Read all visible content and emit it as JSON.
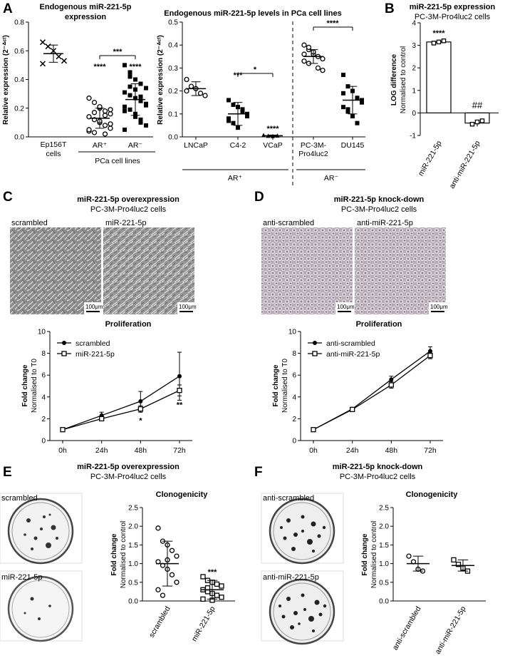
{
  "panels": {
    "A": {
      "letter": "A",
      "title1": "Endogenous miR-221-5p",
      "title2": "expression",
      "title_right": "Endogenous miR-221-5p levels in PCa cell lines",
      "group_left": "PCa cell lines",
      "group_arpos": "AR⁺",
      "group_arneg": "AR⁻"
    },
    "B": {
      "letter": "B",
      "title": "miR-221-5p expression",
      "subtitle": "PC-3M-Pro4luc2 cells"
    },
    "C": {
      "letter": "C",
      "title": "miR-221-5p overexpression",
      "subtitle": "PC-3M-Pro4luc2 cells",
      "img1": "scrambled",
      "img2": "miR-221-5p",
      "scale": "100μm",
      "chart_title": "Proliferation"
    },
    "D": {
      "letter": "D",
      "title": "miR-221-5p knock-down",
      "subtitle": "PC-3M-Pro4luc2 cells",
      "img1": "anti-scrambled",
      "img2": "anti-miR-221-5p",
      "scale": "100μm",
      "chart_title": "Proliferation"
    },
    "E": {
      "letter": "E",
      "title": "miR-221-5p overexpression",
      "subtitle": "PC-3M-Pro4luc2 cells",
      "img1": "scrambled",
      "img2": "miR-221-5p",
      "chart_title": "Clonogenicity"
    },
    "F": {
      "letter": "F",
      "title": "miR-221-5p knock-down",
      "subtitle": "PC-3M-Pro4luc2 cells",
      "img1": "anti-scrambled",
      "img2": "anti-miR-221-5p",
      "chart_title": "Clonogenicity"
    }
  },
  "colors": {
    "line": "#000000",
    "image_gray": "#8a8a8a",
    "image_purple": "#b8adb8"
  },
  "chart_data": [
    {
      "id": "A1",
      "type": "scatter",
      "ylabel": "Relative expression (2⁻ᐞᶜᵗ)",
      "ylim": [
        0,
        0.8
      ],
      "yticks": [
        "0.0",
        "0.2",
        "0.4",
        "0.6",
        "0.8"
      ],
      "categories": [
        "Ep156T cells",
        "AR⁺",
        "AR⁻"
      ],
      "means": [
        0.58,
        0.13,
        0.26
      ],
      "sd": [
        0.06,
        0.07,
        0.11
      ],
      "markers": [
        "x",
        "circle",
        "square"
      ],
      "points": [
        [
          0.66,
          0.63,
          0.6,
          0.56,
          0.53,
          0.51
        ],
        [
          0.27,
          0.24,
          0.2,
          0.18,
          0.16,
          0.14,
          0.12,
          0.1,
          0.08,
          0.06,
          0.04,
          0.03,
          0.21,
          0.15,
          0.09,
          0.05,
          0.17,
          0.11,
          0.02,
          0.19
        ],
        [
          0.5,
          0.45,
          0.4,
          0.37,
          0.34,
          0.31,
          0.29,
          0.27,
          0.25,
          0.23,
          0.21,
          0.19,
          0.16,
          0.12,
          0.08,
          0.05,
          0.42,
          0.33,
          0.28,
          0.22,
          0.18,
          0.35,
          0.14,
          0.1
        ]
      ],
      "annotations": [
        "****",
        "****",
        "***"
      ]
    },
    {
      "id": "A2",
      "type": "scatter",
      "ylabel": "Relative expression (2⁻ᐞᶜᵗ)",
      "ylim": [
        0,
        0.5
      ],
      "yticks": [
        "0.0",
        "0.1",
        "0.2",
        "0.3",
        "0.4",
        "0.5"
      ],
      "categories": [
        "LNCaP",
        "C4-2",
        "VCaP",
        "PC-3M-Pro4luc2",
        "DU145"
      ],
      "category_lines": [
        [
          "LNCaP"
        ],
        [
          "C4-2"
        ],
        [
          "VCaP"
        ],
        [
          "PC-3M-",
          "Pro4luc2"
        ],
        [
          "DU145"
        ]
      ],
      "means": [
        0.21,
        0.1,
        0.005,
        0.35,
        0.16
      ],
      "sd": [
        0.03,
        0.05,
        0.003,
        0.03,
        0.06
      ],
      "markers": [
        "circle",
        "square",
        "triangle",
        "circle",
        "square"
      ],
      "points": [
        [
          0.25,
          0.22,
          0.21,
          0.19,
          0.18,
          0.2
        ],
        [
          0.16,
          0.14,
          0.13,
          0.11,
          0.09,
          0.08,
          0.06,
          0.04,
          0.12,
          0.1,
          0.07
        ],
        [
          0.008,
          0.005,
          0.004,
          0.006
        ],
        [
          0.4,
          0.38,
          0.36,
          0.35,
          0.34,
          0.33,
          0.32,
          0.37,
          0.3,
          0.29,
          0.36,
          0.39
        ],
        [
          0.27,
          0.22,
          0.2,
          0.17,
          0.15,
          0.13,
          0.11,
          0.09,
          0.06,
          0.16,
          0.19,
          0.12
        ]
      ],
      "annotations": [
        "***",
        "****",
        "*",
        "****"
      ]
    },
    {
      "id": "B",
      "type": "bar",
      "ylabel": "LOG difference",
      "ylabel2": "Normalised to control",
      "ylim": [
        -1,
        4
      ],
      "yticks": [
        "-1",
        "0",
        "1",
        "2",
        "3",
        "4"
      ],
      "categories": [
        "miR-221-5p",
        "anti-miR-221-5p"
      ],
      "values": [
        3.15,
        -0.45
      ],
      "sd": [
        0.05,
        0.15
      ],
      "points": [
        [
          3.1,
          3.15,
          3.2
        ],
        [
          -0.5,
          -0.4,
          -0.35
        ]
      ],
      "annotations": [
        "****",
        "##"
      ]
    },
    {
      "id": "C",
      "type": "line",
      "ylabel": "Fold change",
      "ylabel2": "Normalised to T0",
      "ylim": [
        0,
        10
      ],
      "yticks": [
        "0",
        "2",
        "4",
        "6",
        "8",
        "10"
      ],
      "x": [
        "0h",
        "24h",
        "48h",
        "72h"
      ],
      "series": [
        {
          "name": "scrambled",
          "marker": "circle",
          "values": [
            1,
            2.3,
            3.6,
            5.9
          ],
          "sd": [
            0.05,
            0.3,
            0.9,
            2.2
          ]
        },
        {
          "name": "miR-221-5p",
          "marker": "square",
          "values": [
            1,
            2.0,
            2.9,
            4.6
          ],
          "sd": [
            0.05,
            0.2,
            0.3,
            0.5
          ]
        }
      ],
      "annotations": [
        "*",
        "**"
      ]
    },
    {
      "id": "D",
      "type": "line",
      "ylabel": "Fold change",
      "ylabel2": "Normalised to T0",
      "ylim": [
        0,
        10
      ],
      "yticks": [
        "0",
        "2",
        "4",
        "6",
        "8",
        "10"
      ],
      "x": [
        "0h",
        "24h",
        "48h",
        "72h"
      ],
      "series": [
        {
          "name": "anti-scrambled",
          "marker": "circle",
          "values": [
            1,
            2.9,
            5.6,
            8.2
          ],
          "sd": [
            0.05,
            0.1,
            0.3,
            0.4
          ]
        },
        {
          "name": "anti-miR-221-5p",
          "marker": "square",
          "values": [
            1,
            2.85,
            5.1,
            7.8
          ],
          "sd": [
            0.05,
            0.1,
            0.3,
            0.3
          ]
        }
      ]
    },
    {
      "id": "E",
      "type": "scatter",
      "ylabel": "Fold change",
      "ylabel2": "Normalised to control",
      "ylim": [
        0,
        2.5
      ],
      "yticks": [
        "0.0",
        "0.5",
        "1.0",
        "1.5",
        "2.0",
        "2.5"
      ],
      "categories": [
        "scrambled",
        "miR-221-5p"
      ],
      "means": [
        1.0,
        0.3
      ],
      "sd": [
        0.6,
        0.25
      ],
      "markers": [
        "circle",
        "square"
      ],
      "points": [
        [
          1.95,
          1.6,
          1.5,
          1.35,
          1.2,
          1.05,
          0.95,
          0.85,
          0.7,
          0.5,
          0.3,
          0.15,
          1.1
        ],
        [
          0.65,
          0.55,
          0.5,
          0.45,
          0.4,
          0.3,
          0.25,
          0.2,
          0.15,
          0.1,
          0.05,
          0.35,
          0.02
        ]
      ],
      "annotations": [
        "***"
      ]
    },
    {
      "id": "F",
      "type": "scatter",
      "ylabel": "Fold change",
      "ylabel2": "Normalised to control",
      "ylim": [
        0,
        2.5
      ],
      "yticks": [
        "0.0",
        "0.5",
        "1.0",
        "1.5",
        "2.0",
        "2.5"
      ],
      "categories": [
        "anti-scrambled",
        "anti-miR-221-5p"
      ],
      "means": [
        1.0,
        0.95
      ],
      "sd": [
        0.2,
        0.15
      ],
      "markers": [
        "circle",
        "square"
      ],
      "points": [
        [
          1.2,
          1.05,
          0.85,
          0.8
        ],
        [
          1.1,
          0.98,
          0.88,
          0.8
        ]
      ]
    }
  ]
}
